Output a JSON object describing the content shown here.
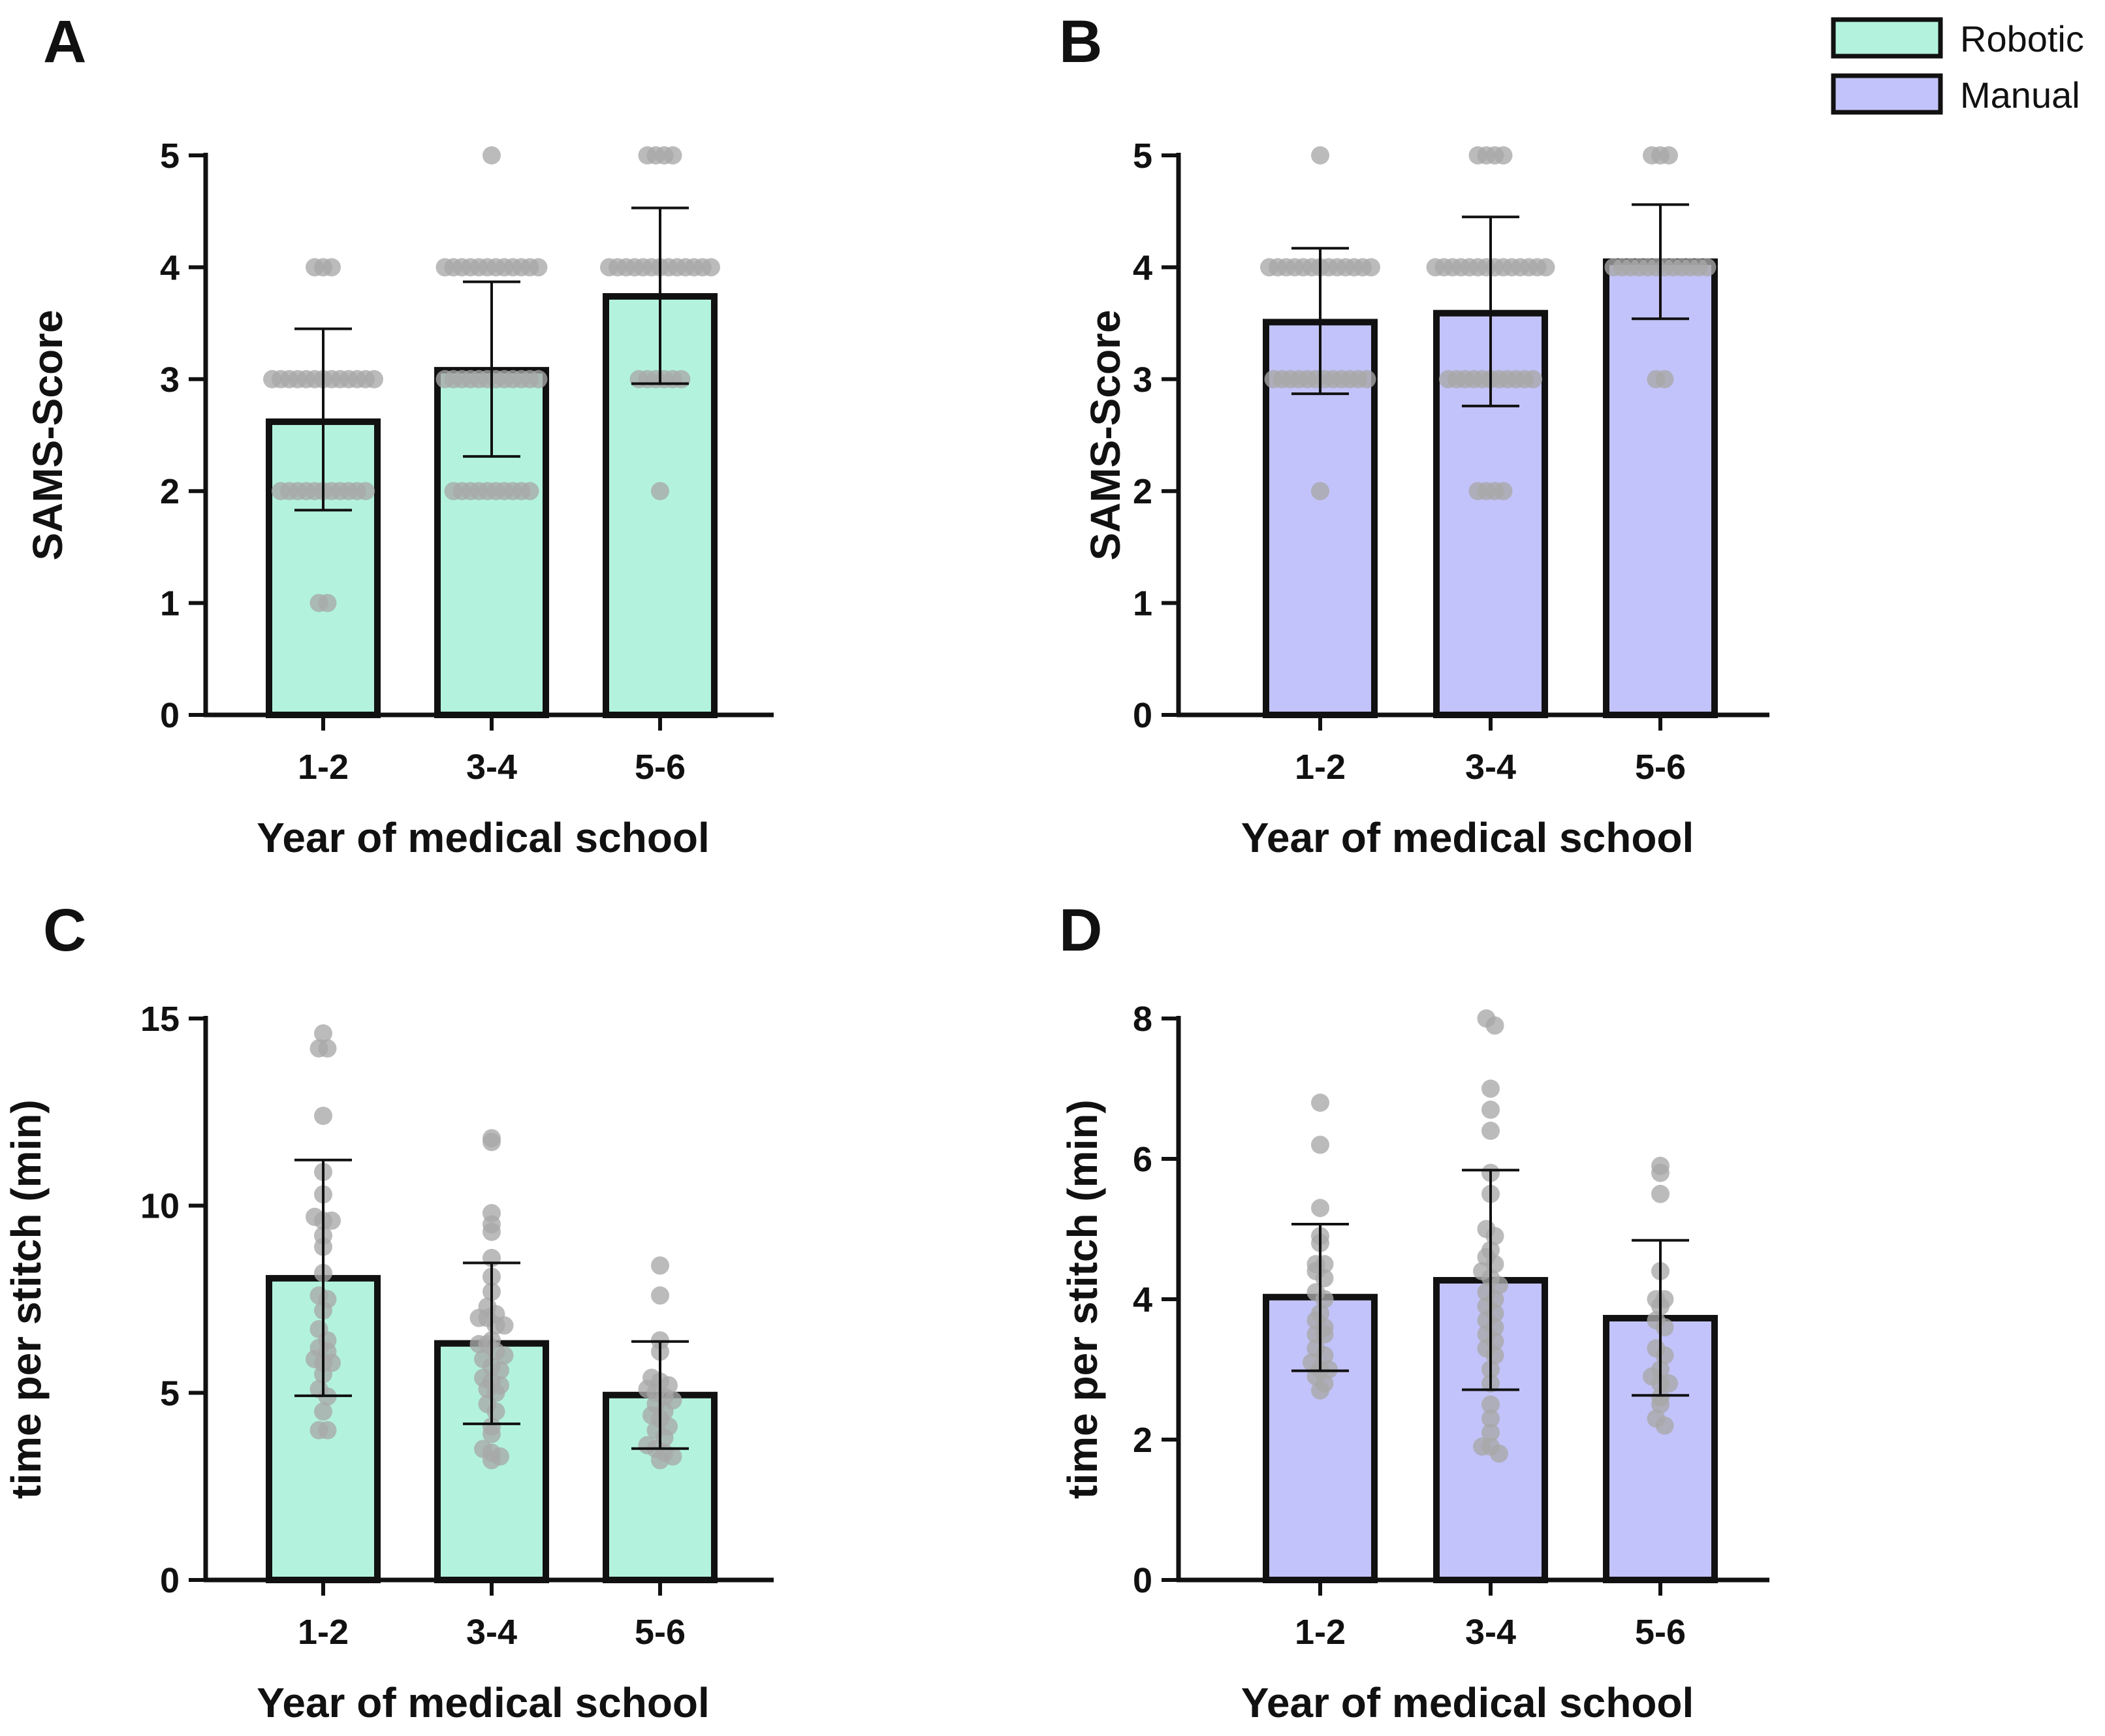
{
  "colors": {
    "robotic": "#b3f3de",
    "manual": "#c3c3fb",
    "outline": "#111111",
    "dot": "#a8a8a8"
  },
  "legend": {
    "items": [
      {
        "label": "Robotic",
        "color": "#b3f3de"
      },
      {
        "label": "Manual",
        "color": "#c3c3fb"
      }
    ]
  },
  "chart_data": [
    {
      "panel": "A",
      "type": "bar",
      "group": "Robotic",
      "ylabel": "SAMS-Score",
      "xlabel": "Year of medical school",
      "categories": [
        "1-2",
        "3-4",
        "5-6"
      ],
      "values": [
        2.62,
        3.08,
        3.74
      ],
      "error_low": [
        1.83,
        2.31,
        2.96
      ],
      "error_high": [
        3.45,
        3.87,
        4.53
      ],
      "yticks": [
        0,
        1,
        2,
        3,
        4,
        5
      ],
      "ylim": [
        0,
        5
      ],
      "points": [
        [
          4,
          4,
          4,
          3,
          3,
          3,
          3,
          3,
          3,
          3,
          3,
          3,
          3,
          3,
          3,
          3,
          2,
          2,
          2,
          2,
          2,
          2,
          2,
          2,
          2,
          2,
          2,
          1,
          1
        ],
        [
          5,
          4,
          4,
          4,
          4,
          4,
          4,
          4,
          4,
          4,
          4,
          4,
          4,
          3,
          3,
          3,
          3,
          3,
          3,
          3,
          3,
          3,
          3,
          3,
          3,
          2,
          2,
          2,
          2,
          2,
          2,
          2,
          2,
          2,
          2
        ],
        [
          5,
          5,
          5,
          5,
          4,
          4,
          4,
          4,
          4,
          4,
          4,
          4,
          4,
          4,
          4,
          4,
          4,
          3,
          3,
          3,
          3,
          3,
          3,
          2
        ]
      ]
    },
    {
      "panel": "B",
      "type": "bar",
      "group": "Manual",
      "ylabel": "SAMS-Score",
      "xlabel": "Year of medical school",
      "categories": [
        "1-2",
        "3-4",
        "5-6"
      ],
      "values": [
        3.51,
        3.59,
        4.05
      ],
      "error_low": [
        2.87,
        2.76,
        3.54
      ],
      "error_high": [
        4.17,
        4.45,
        4.56
      ],
      "yticks": [
        0,
        1,
        2,
        3,
        4,
        5
      ],
      "ylim": [
        0,
        5
      ],
      "points": [
        [
          5,
          4,
          4,
          4,
          4,
          4,
          4,
          4,
          4,
          4,
          4,
          4,
          4,
          4,
          3,
          3,
          3,
          3,
          3,
          3,
          3,
          3,
          3,
          3,
          3,
          3,
          2
        ],
        [
          5,
          5,
          5,
          5,
          4,
          4,
          4,
          4,
          4,
          4,
          4,
          4,
          4,
          4,
          4,
          4,
          4,
          4,
          3,
          3,
          3,
          3,
          3,
          3,
          3,
          3,
          3,
          3,
          3,
          2,
          2,
          2,
          2
        ],
        [
          5,
          5,
          5,
          4,
          4,
          4,
          4,
          4,
          4,
          4,
          4,
          4,
          4,
          4,
          4,
          3,
          3
        ]
      ]
    },
    {
      "panel": "C",
      "type": "bar",
      "group": "Robotic",
      "ylabel": "time per stitch (min)",
      "xlabel": "Year of medical school",
      "categories": [
        "1-2",
        "3-4",
        "5-6"
      ],
      "values": [
        8.06,
        6.32,
        4.94
      ],
      "error_low": [
        4.92,
        4.17,
        3.51
      ],
      "error_high": [
        11.22,
        8.47,
        6.37
      ],
      "yticks": [
        0,
        5,
        10,
        15
      ],
      "ylim": [
        0,
        15
      ],
      "points": [
        [
          14.6,
          14.2,
          14.2,
          12.4,
          10.9,
          10.3,
          9.7,
          9.6,
          9.6,
          9.2,
          8.9,
          8.2,
          7.6,
          7.5,
          7.2,
          6.7,
          6.4,
          6.2,
          6.1,
          5.9,
          5.8,
          5.8,
          5.5,
          5.1,
          4.9,
          4.5,
          4.0,
          4.0
        ],
        [
          11.8,
          11.7,
          9.8,
          9.5,
          9.3,
          8.6,
          8.1,
          7.7,
          7.3,
          7.1,
          7.0,
          7.0,
          6.8,
          6.8,
          6.4,
          6.3,
          6.3,
          6.1,
          6.0,
          5.9,
          5.7,
          5.6,
          5.4,
          5.3,
          5.2,
          5.1,
          5.0,
          4.7,
          4.5,
          4.1,
          3.9,
          3.5,
          3.4,
          3.3,
          3.2
        ],
        [
          8.4,
          7.6,
          6.4,
          6.1,
          5.4,
          5.3,
          5.2,
          5.1,
          5.0,
          4.9,
          4.8,
          4.7,
          4.5,
          4.4,
          4.3,
          4.1,
          4.0,
          3.8,
          3.6,
          3.5,
          3.4,
          3.3,
          3.2
        ]
      ]
    },
    {
      "panel": "D",
      "type": "bar",
      "group": "Manual",
      "ylabel": "time per stitch (min)",
      "xlabel": "Year of medical school",
      "categories": [
        "1-2",
        "3-4",
        "5-6"
      ],
      "values": [
        4.03,
        4.27,
        3.73
      ],
      "error_low": [
        2.98,
        2.71,
        2.63
      ],
      "error_high": [
        5.07,
        5.84,
        4.84
      ],
      "yticks": [
        0,
        2,
        4,
        6,
        8
      ],
      "ylim": [
        0,
        8
      ],
      "points": [
        [
          6.8,
          6.2,
          5.3,
          4.9,
          4.8,
          4.5,
          4.5,
          4.4,
          4.3,
          4.1,
          4.0,
          3.8,
          3.7,
          3.6,
          3.5,
          3.5,
          3.3,
          3.2,
          3.1,
          3.0,
          3.0,
          2.9,
          2.8,
          2.7
        ],
        [
          8.0,
          7.9,
          7.0,
          6.7,
          6.4,
          5.8,
          5.5,
          5.0,
          4.9,
          4.7,
          4.6,
          4.5,
          4.4,
          4.3,
          4.2,
          4.1,
          4.0,
          3.9,
          3.8,
          3.7,
          3.6,
          3.5,
          3.4,
          3.3,
          3.2,
          3.0,
          2.8,
          2.5,
          2.3,
          2.1,
          1.9,
          1.9,
          1.8
        ],
        [
          5.9,
          5.8,
          5.5,
          4.4,
          4.0,
          4.0,
          3.9,
          3.7,
          3.6,
          3.3,
          3.2,
          3.0,
          2.9,
          2.8,
          2.8,
          2.6,
          2.5,
          2.3,
          2.2
        ]
      ]
    }
  ]
}
